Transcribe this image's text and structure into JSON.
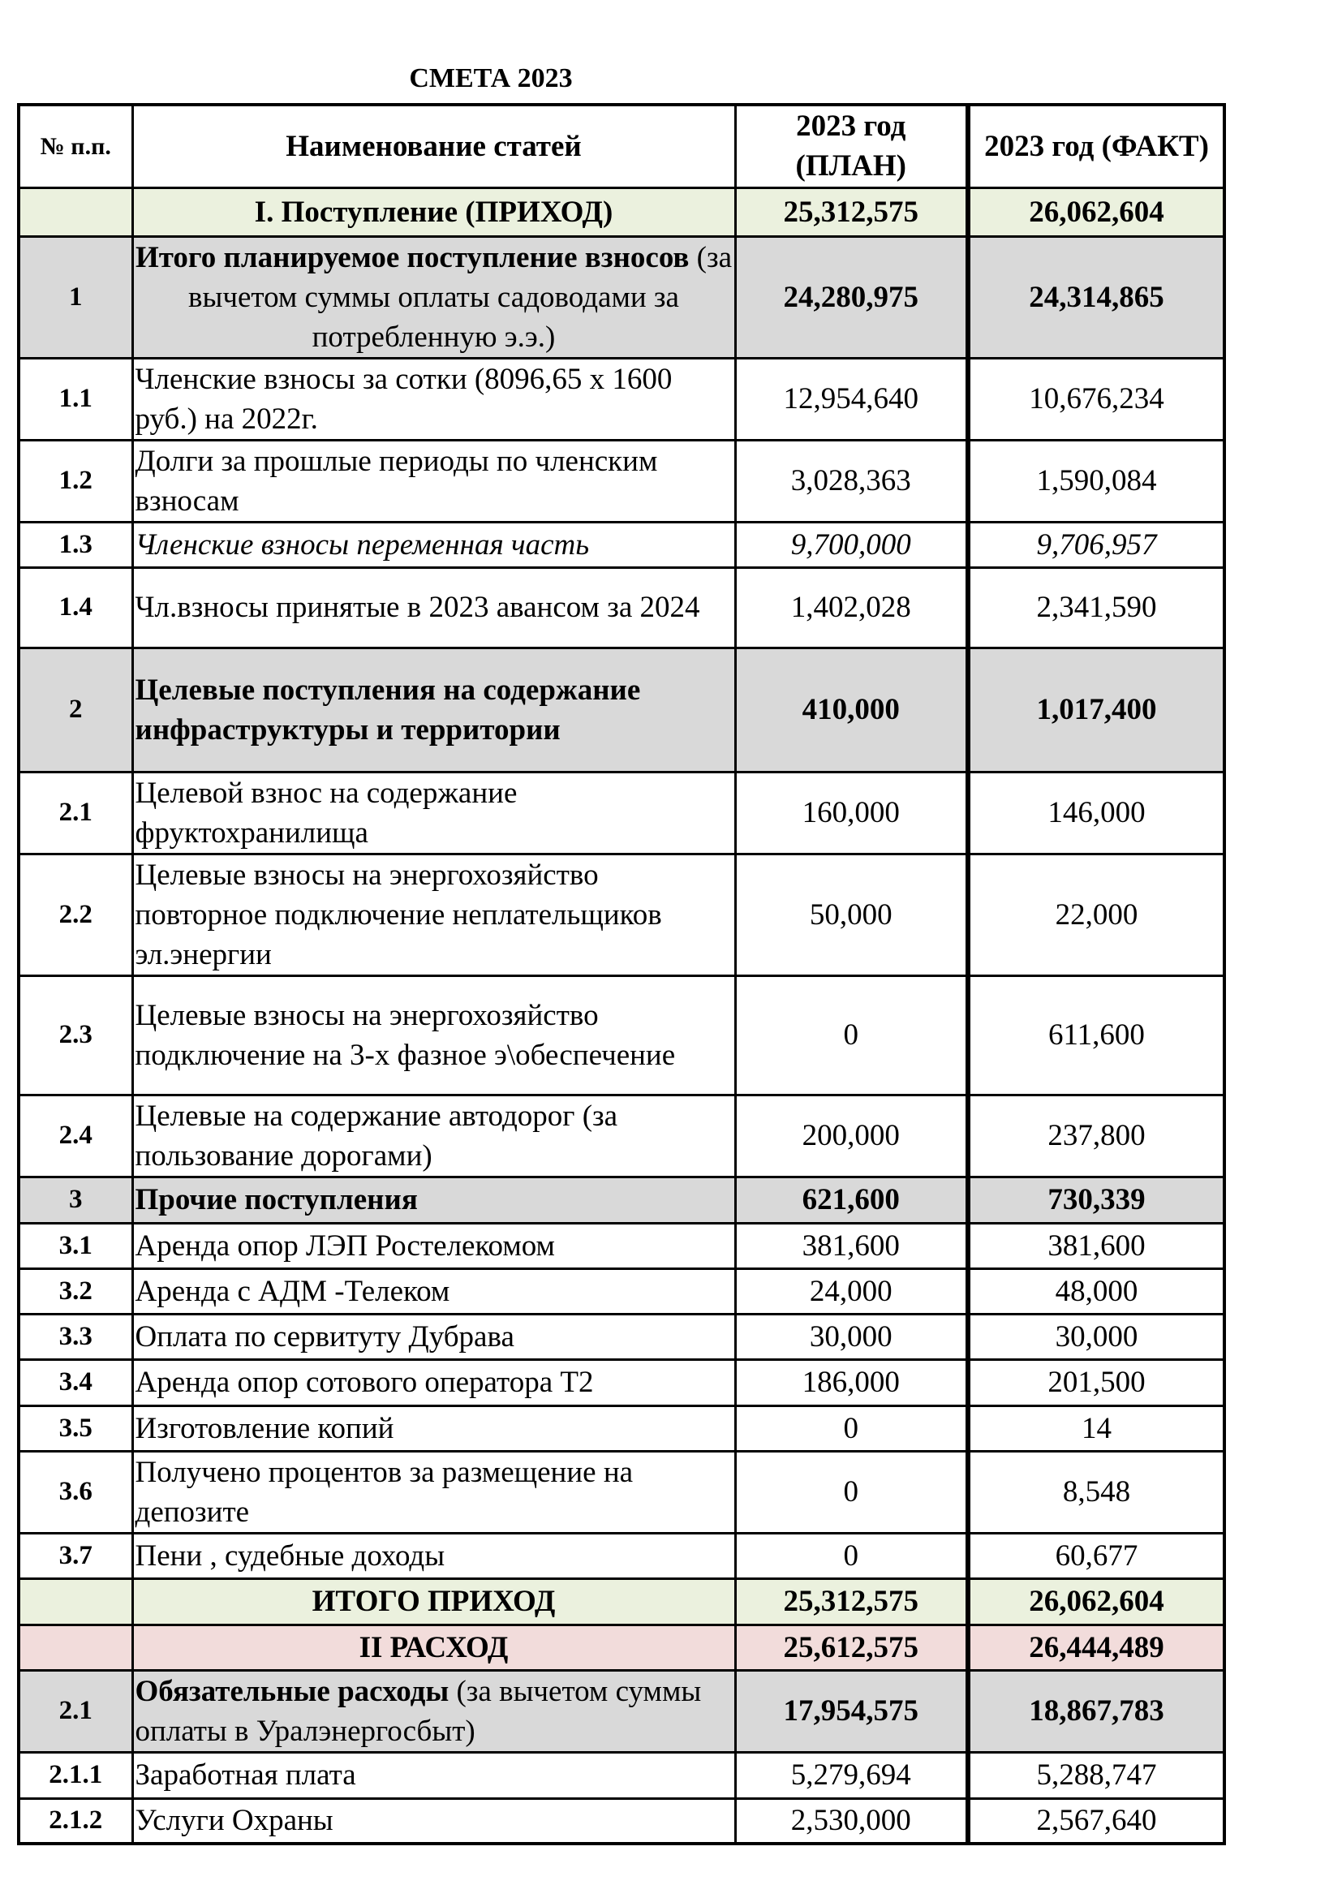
{
  "title": "СМЕТА 2023",
  "header": {
    "num": "№ п.п.",
    "name": "Наименование статей",
    "plan": "2023 год (ПЛАН)",
    "fact": "2023 год (ФАКТ)"
  },
  "colors": {
    "section_income": "#ebf1de",
    "subtotal": "#d9d9d9",
    "section_expense": "#f2dcdb"
  },
  "rows": [
    {
      "num": "",
      "bold_part": "I.   Поступление (ПРИХОД)",
      "rest": "",
      "plan": "25,312,575",
      "fact": "26,062,604",
      "style": "green bold center"
    },
    {
      "num": "1",
      "bold_part": "Итого планируемое поступление взносов",
      "rest": " (за вычетом суммы оплаты садоводами за потребленную э.э.)",
      "plan": "24,280,975",
      "fact": "24,314,865",
      "style": "gray bold center"
    },
    {
      "num": "1.1",
      "bold_part": "",
      "rest": "Членские взносы за сотки (8096,65 х 1600 руб.) на 2022г.",
      "plan": "12,954,640",
      "fact": "10,676,234",
      "style": ""
    },
    {
      "num": "1.2",
      "bold_part": "",
      "rest": "Долги за прошлые периоды по членским взносам",
      "plan": "3,028,363",
      "fact": "1,590,084",
      "style": ""
    },
    {
      "num": "1.3",
      "bold_part": "",
      "rest": "Членские взносы переменная часть",
      "plan": "9,700,000",
      "fact": "9,706,957",
      "style": "italic"
    },
    {
      "num": "1.4",
      "bold_part": "",
      "rest": "Чл.взносы принятые в 2023 авансом за 2024",
      "plan": "1,402,028",
      "fact": "2,341,590",
      "style": ""
    },
    {
      "num": "2",
      "bold_part": "Целевые поступления на содержание инфраструктуры и территории",
      "rest": "",
      "plan": "410,000",
      "fact": "1,017,400",
      "style": "gray bold"
    },
    {
      "num": "2.1",
      "bold_part": "",
      "rest": "Целевой взнос на содержание фруктохранилища",
      "plan": "160,000",
      "fact": "146,000",
      "style": ""
    },
    {
      "num": "2.2",
      "bold_part": "",
      "rest": "Целевые взносы на энергохозяйство повторное подключение неплательщиков эл.энергии",
      "plan": "50,000",
      "fact": "22,000",
      "style": ""
    },
    {
      "num": "2.3",
      "bold_part": "",
      "rest": "Целевые взносы на энергохозяйство подключение на 3-х фазное э\\обеспечение",
      "plan": "0",
      "fact": "611,600",
      "style": ""
    },
    {
      "num": "2.4",
      "bold_part": "",
      "rest": "Целевые на содержание автодорог (за пользование дорогами)",
      "plan": "200,000",
      "fact": "237,800",
      "style": ""
    },
    {
      "num": "3",
      "bold_part": "Прочие поступления",
      "rest": "",
      "plan": "621,600",
      "fact": "730,339",
      "style": "gray bold"
    },
    {
      "num": "3.1",
      "bold_part": "",
      "rest": "Аренда опор ЛЭП Ростелекомом",
      "plan": "381,600",
      "fact": "381,600",
      "style": ""
    },
    {
      "num": "3.2",
      "bold_part": "",
      "rest": "Аренда с АДМ -Телеком",
      "plan": "24,000",
      "fact": "48,000",
      "style": ""
    },
    {
      "num": "3.3",
      "bold_part": "",
      "rest": "Оплата по сервитуту Дубрава",
      "plan": "30,000",
      "fact": "30,000",
      "style": ""
    },
    {
      "num": "3.4",
      "bold_part": "",
      "rest": "Аренда опор сотового оператора Т2",
      "plan": "186,000",
      "fact": "201,500",
      "style": ""
    },
    {
      "num": "3.5",
      "bold_part": "",
      "rest": "Изготовление копий",
      "plan": "0",
      "fact": "14",
      "style": ""
    },
    {
      "num": "3.6",
      "bold_part": "",
      "rest": "Получено процентов за размещение на депозите",
      "plan": "0",
      "fact": "8,548",
      "style": ""
    },
    {
      "num": "3.7",
      "bold_part": "",
      "rest": "Пени , судебные доходы",
      "plan": "0",
      "fact": "60,677",
      "style": ""
    },
    {
      "num": "",
      "bold_part": "ИТОГО  ПРИХОД",
      "rest": "",
      "plan": "25,312,575",
      "fact": "26,062,604",
      "style": "green bold center"
    },
    {
      "num": "",
      "bold_part": "II    РАСХОД",
      "rest": "",
      "plan": "25,612,575",
      "fact": "26,444,489",
      "style": "pink bold center"
    },
    {
      "num": "2.1",
      "bold_part": "Обязательные расходы",
      "rest": " (за вычетом суммы оплаты в Уралэнергосбыт)",
      "plan": "17,954,575",
      "fact": "18,867,783",
      "style": "gray bold"
    },
    {
      "num": "2.1.1",
      "bold_part": "",
      "rest": "Заработная плата",
      "plan": "5,279,694",
      "fact": "5,288,747",
      "style": ""
    },
    {
      "num": "2.1.2",
      "bold_part": "",
      "rest": "Услуги Охраны",
      "plan": "2,530,000",
      "fact": "2,567,640",
      "style": ""
    }
  ]
}
